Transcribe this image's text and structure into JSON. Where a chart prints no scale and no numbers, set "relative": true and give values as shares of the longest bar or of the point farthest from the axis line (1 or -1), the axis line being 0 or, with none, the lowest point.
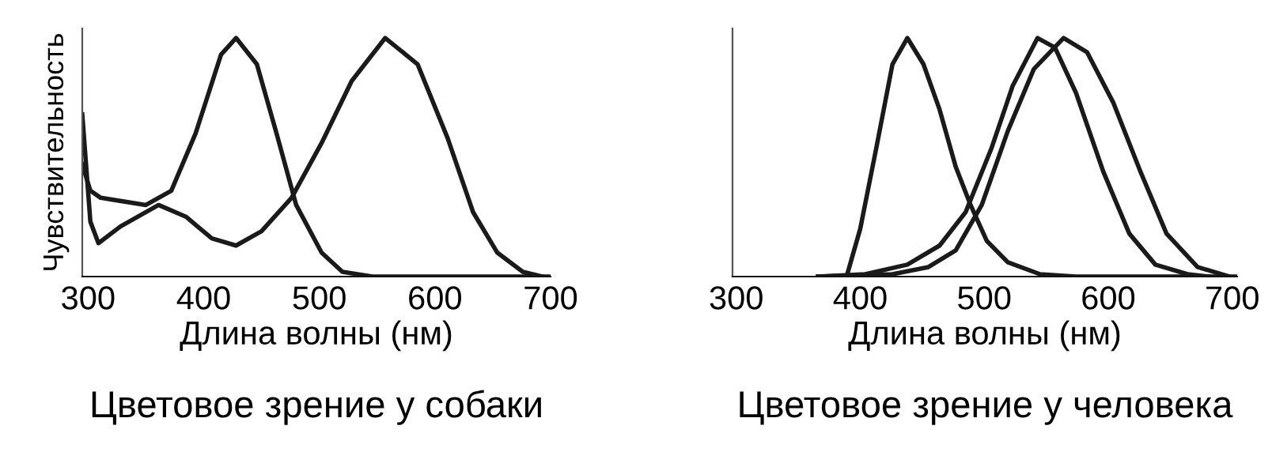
{
  "chart_data": [
    {
      "type": "line",
      "title": "Цветовое зрение у собаки",
      "xlabel": "Длина волны (нм)",
      "ylabel": "Чувствительность",
      "relative": true,
      "tick_labels": "x",
      "grid": false,
      "legend": false,
      "xlim": [
        295,
        700
      ],
      "xticks": [
        300,
        400,
        500,
        600,
        700
      ],
      "series": [
        {
          "color": "#1a1a1a",
          "x": [
            295,
            302,
            311,
            350,
            372,
            393,
            415,
            428,
            446,
            463,
            480,
            502,
            520,
            546,
            700
          ],
          "values": [
            0.47,
            0.36,
            0.33,
            0.3,
            0.36,
            0.6,
            0.93,
            1.0,
            0.89,
            0.6,
            0.3,
            0.1,
            0.02,
            0,
            0
          ]
        },
        {
          "color": "#1a1a1a",
          "x": [
            295,
            302,
            309,
            328,
            361,
            385,
            407,
            428,
            450,
            476,
            502,
            528,
            557,
            585,
            611,
            633,
            654,
            676,
            693
          ],
          "values": [
            0.68,
            0.23,
            0.14,
            0.21,
            0.3,
            0.25,
            0.16,
            0.13,
            0.19,
            0.33,
            0.56,
            0.82,
            1.0,
            0.89,
            0.58,
            0.27,
            0.1,
            0.02,
            0
          ]
        }
      ]
    },
    {
      "type": "line",
      "title": "Цветовое зрение у человека",
      "xlabel": "Длина волны (нм)",
      "relative": true,
      "tick_labels": "x",
      "grid": false,
      "legend": false,
      "xlim": [
        297,
        704
      ],
      "xticks": [
        300,
        400,
        500,
        600,
        700
      ],
      "series": [
        {
          "color": "#1a1a1a",
          "x": [
            389,
            400,
            413,
            426,
            438,
            451,
            464,
            477,
            489,
            502,
            519,
            545,
            574,
            704
          ],
          "values": [
            0,
            0.2,
            0.54,
            0.89,
            1.0,
            0.89,
            0.7,
            0.46,
            0.3,
            0.15,
            0.06,
            0.01,
            0,
            0
          ]
        },
        {
          "color": "#1a1a1a",
          "x": [
            366,
            404,
            438,
            464,
            485,
            506,
            523,
            543,
            557,
            574,
            596,
            617,
            638,
            664,
            681
          ],
          "values": [
            0,
            0.01,
            0.05,
            0.13,
            0.27,
            0.54,
            0.8,
            1.0,
            0.96,
            0.77,
            0.44,
            0.18,
            0.05,
            0.01,
            0
          ]
        },
        {
          "color": "#1a1a1a",
          "x": [
            366,
            426,
            455,
            477,
            498,
            519,
            540,
            564,
            583,
            604,
            626,
            647,
            672,
            698
          ],
          "values": [
            0,
            0.01,
            0.04,
            0.11,
            0.3,
            0.61,
            0.87,
            1.0,
            0.94,
            0.73,
            0.44,
            0.18,
            0.04,
            0
          ]
        }
      ]
    }
  ]
}
